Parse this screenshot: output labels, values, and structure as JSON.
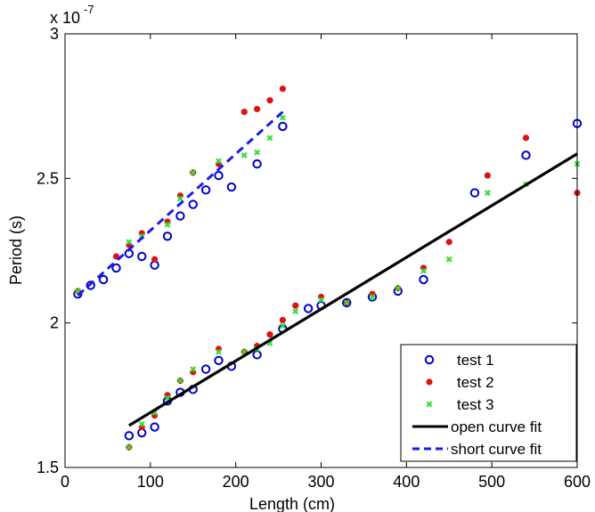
{
  "chart_data": {
    "type": "scatter",
    "xlabel": "Length (cm)",
    "ylabel": "Period (s)",
    "multiplier_base": "x 10",
    "multiplier_exp": "-7",
    "xlim": [
      0,
      600
    ],
    "ylim": [
      1.5,
      3.0
    ],
    "xticks": [
      0,
      100,
      200,
      300,
      400,
      500,
      600
    ],
    "xtick_labels": [
      "0",
      "100",
      "200",
      "300",
      "400",
      "500",
      "600"
    ],
    "yticks": [
      1.5,
      2.0,
      2.5,
      3.0
    ],
    "ytick_labels": [
      "1.5",
      "2",
      "2.5",
      "3"
    ],
    "grid": false,
    "legend_position": "bottom-right",
    "series": [
      {
        "name": "test 1",
        "marker": "circle-open",
        "color": "#0000cc",
        "x": [
          15,
          30,
          45,
          60,
          75,
          90,
          105,
          120,
          135,
          150,
          165,
          180,
          195,
          225,
          255,
          75,
          90,
          105,
          120,
          135,
          150,
          165,
          180,
          195,
          225,
          255,
          285,
          300,
          330,
          360,
          390,
          420,
          480,
          540,
          600
        ],
        "y": [
          2.1,
          2.13,
          2.15,
          2.19,
          2.24,
          2.23,
          2.2,
          2.3,
          2.37,
          2.41,
          2.46,
          2.51,
          2.47,
          2.55,
          2.68,
          1.61,
          1.62,
          1.64,
          1.73,
          1.76,
          1.77,
          1.84,
          1.87,
          1.85,
          1.89,
          1.98,
          2.05,
          2.06,
          2.07,
          2.09,
          2.11,
          2.15,
          2.45,
          2.58,
          2.69
        ]
      },
      {
        "name": "test 2",
        "marker": "dot",
        "color": "#dd1111",
        "x": [
          15,
          60,
          75,
          90,
          105,
          120,
          135,
          150,
          180,
          210,
          225,
          240,
          255,
          75,
          90,
          105,
          120,
          135,
          150,
          180,
          210,
          225,
          240,
          255,
          270,
          300,
          330,
          360,
          390,
          420,
          450,
          495,
          540,
          600
        ],
        "y": [
          2.11,
          2.23,
          2.27,
          2.31,
          2.22,
          2.35,
          2.44,
          2.52,
          2.55,
          2.73,
          2.74,
          2.77,
          2.81,
          1.57,
          1.64,
          1.68,
          1.75,
          1.8,
          1.83,
          1.91,
          1.9,
          1.92,
          1.96,
          2.01,
          2.06,
          2.09,
          2.07,
          2.1,
          2.12,
          2.19,
          2.28,
          2.51,
          2.64,
          2.45
        ]
      },
      {
        "name": "test 3",
        "marker": "x",
        "color": "#33dd33",
        "x": [
          15,
          75,
          90,
          120,
          135,
          150,
          180,
          210,
          225,
          240,
          255,
          75,
          90,
          105,
          120,
          135,
          150,
          180,
          210,
          225,
          240,
          255,
          270,
          300,
          330,
          360,
          390,
          420,
          450,
          495,
          540,
          600
        ],
        "y": [
          2.11,
          2.28,
          2.3,
          2.34,
          2.43,
          2.52,
          2.56,
          2.58,
          2.59,
          2.64,
          2.71,
          1.57,
          1.65,
          1.69,
          1.74,
          1.8,
          1.84,
          1.9,
          1.9,
          1.91,
          1.93,
          1.99,
          2.04,
          2.08,
          2.07,
          2.09,
          2.12,
          2.18,
          2.22,
          2.45,
          2.48,
          2.55
        ]
      },
      {
        "name": "open curve fit",
        "line": "solid",
        "color": "#000000",
        "x": [
          75,
          600
        ],
        "y": [
          1.645,
          2.585
        ]
      },
      {
        "name": "short curve fit",
        "line": "dashed",
        "color": "#1a1aee",
        "x": [
          15,
          255
        ],
        "y": [
          2.095,
          2.73
        ]
      }
    ]
  }
}
